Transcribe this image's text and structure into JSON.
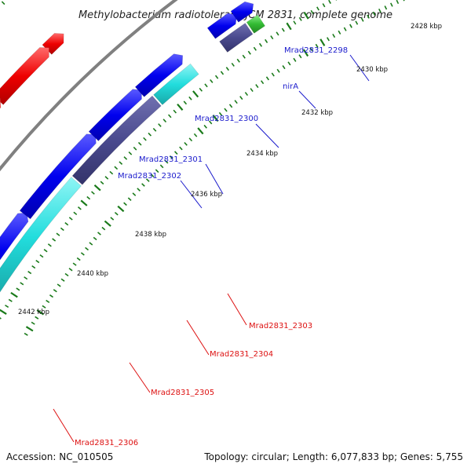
{
  "title": "Methylobacterium radiotolerans JCM 2831, complete genome",
  "footer": {
    "accession": "Accession: NC_010505",
    "summary": "Topology: circular; Length: 6,077,833 bp; Genes: 5,755"
  },
  "tick_labels": [
    "2428 kbp",
    "2430 kbp",
    "2432 kbp",
    "2434 kbp",
    "2436 kbp",
    "2438 kbp",
    "2440 kbp",
    "2442 kbp"
  ],
  "gene_labels_forward": [
    "Mrad2831_2298",
    "nirA",
    "Mrad2831_2300",
    "Mrad2831_2301",
    "Mrad2831_2302"
  ],
  "gene_labels_reverse": [
    "Mrad2831_2303",
    "Mrad2831_2304",
    "Mrad2831_2305",
    "Mrad2831_2306"
  ],
  "colors": {
    "backbone": "#808080",
    "tick": "#1a7a1a",
    "cds_forward": "#0000ee",
    "cds_reverse": "#ee0000",
    "feature_slate": "#4a4a8e",
    "feature_cyan": "#22dddd",
    "feature_teal": "#22cccc",
    "feature_green": "#33bb33",
    "label_forward": "#1a1acc",
    "label_reverse": "#dd1111"
  }
}
